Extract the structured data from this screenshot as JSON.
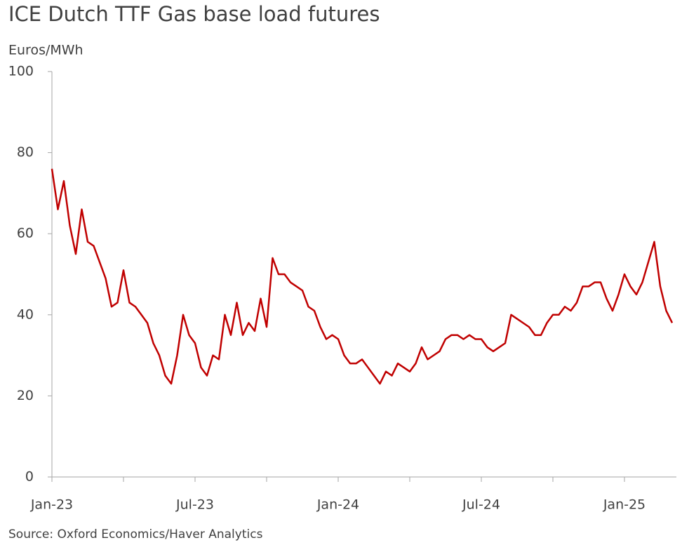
{
  "chart_data": {
    "type": "line",
    "title": "ICE Dutch TTF Gas base load futures",
    "y_label": "Euros/MWh",
    "source": "Source: Oxford Economics/Haver Analytics",
    "color": "#c00000",
    "categories": [
      "Jan-23",
      null,
      null,
      null,
      null,
      null,
      null,
      null,
      null,
      null,
      null,
      null,
      null,
      null,
      null,
      null,
      null,
      null,
      null,
      null,
      null,
      null,
      null,
      null,
      "Jul-23",
      null,
      null,
      null,
      null,
      null,
      null,
      null,
      null,
      null,
      null,
      null,
      null,
      null,
      null,
      null,
      null,
      null,
      null,
      null,
      null,
      null,
      null,
      null,
      "Jan-24",
      null,
      null,
      null,
      null,
      null,
      null,
      null,
      null,
      null,
      null,
      null,
      null,
      null,
      null,
      null,
      null,
      null,
      null,
      null,
      null,
      null,
      null,
      null,
      "Jul-24",
      null,
      null,
      null,
      null,
      null,
      null,
      null,
      null,
      null,
      null,
      null,
      null,
      null,
      null,
      null,
      null,
      null,
      null,
      null,
      null,
      null,
      null,
      null,
      "Jan-25",
      null,
      null,
      null,
      null,
      null,
      null,
      null,
      null
    ],
    "values": [
      76,
      66,
      73,
      62,
      55,
      66,
      58,
      57,
      53,
      49,
      42,
      43,
      51,
      43,
      42,
      40,
      38,
      33,
      30,
      25,
      23,
      30,
      40,
      35,
      33,
      27,
      25,
      30,
      29,
      40,
      35,
      43,
      35,
      38,
      36,
      44,
      37,
      54,
      50,
      50,
      48,
      47,
      46,
      42,
      41,
      37,
      34,
      35,
      34,
      30,
      28,
      28,
      29,
      27,
      25,
      23,
      26,
      25,
      28,
      27,
      26,
      28,
      32,
      29,
      30,
      31,
      34,
      35,
      35,
      34,
      35,
      34,
      34,
      32,
      31,
      32,
      33,
      40,
      39,
      38,
      37,
      35,
      35,
      38,
      40,
      40,
      42,
      41,
      43,
      47,
      47,
      48,
      48,
      44,
      41,
      45,
      50,
      47,
      45,
      48,
      53,
      58,
      47,
      41,
      38
    ],
    "ylim": [
      0,
      100
    ],
    "yticks": [
      0,
      20,
      40,
      60,
      80,
      100
    ]
  }
}
